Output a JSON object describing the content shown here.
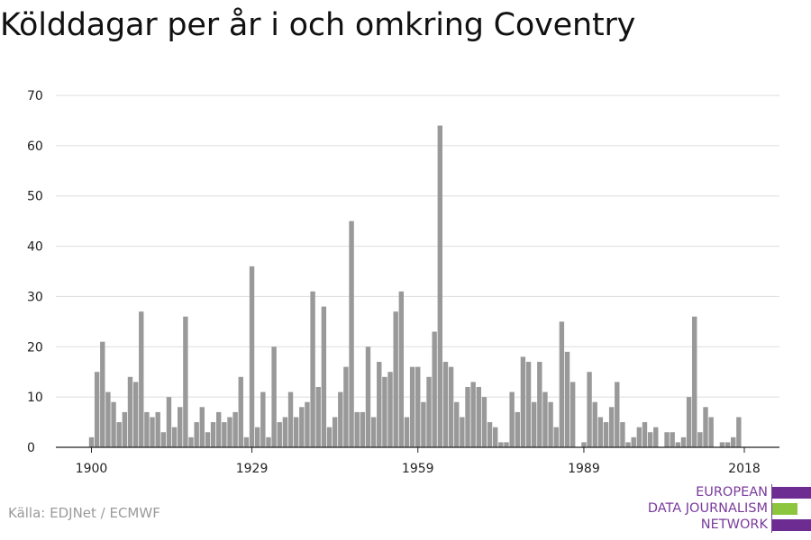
{
  "page": {
    "title": "Kölddagar per år i och omkring Coventry",
    "source": "Källa: EDJNet / ECMWF"
  },
  "logo": {
    "lines": [
      "EUROPEAN",
      "DATA JOURNALISM",
      "NETWORK"
    ],
    "colors": {
      "purple": "#6d2c91",
      "green": "#8cc63f",
      "text": "#7a3b9c"
    }
  },
  "chart_data": {
    "type": "bar",
    "title": "Kölddagar per år i och omkring Coventry",
    "xlabel": "",
    "ylabel": "",
    "ylim": [
      0,
      70
    ],
    "yticks": [
      0,
      10,
      20,
      30,
      40,
      50,
      60,
      70
    ],
    "xticks": [
      1900,
      1929,
      1959,
      1989,
      2018
    ],
    "grid": true,
    "bar_color": "#999999",
    "categories": [
      1900,
      1901,
      1902,
      1903,
      1904,
      1905,
      1906,
      1907,
      1908,
      1909,
      1910,
      1911,
      1912,
      1913,
      1914,
      1915,
      1916,
      1917,
      1918,
      1919,
      1920,
      1921,
      1922,
      1923,
      1924,
      1925,
      1926,
      1927,
      1928,
      1929,
      1930,
      1931,
      1932,
      1933,
      1934,
      1935,
      1936,
      1937,
      1938,
      1939,
      1940,
      1941,
      1942,
      1943,
      1944,
      1945,
      1946,
      1947,
      1948,
      1949,
      1950,
      1951,
      1952,
      1953,
      1954,
      1955,
      1956,
      1957,
      1958,
      1959,
      1960,
      1961,
      1962,
      1963,
      1964,
      1965,
      1966,
      1967,
      1968,
      1969,
      1970,
      1971,
      1972,
      1973,
      1974,
      1975,
      1976,
      1977,
      1978,
      1979,
      1980,
      1981,
      1982,
      1983,
      1984,
      1985,
      1986,
      1987,
      1988,
      1989,
      1990,
      1991,
      1992,
      1993,
      1994,
      1995,
      1996,
      1997,
      1998,
      1999,
      2000,
      2001,
      2002,
      2003,
      2004,
      2005,
      2006,
      2007,
      2008,
      2009,
      2010,
      2011,
      2012,
      2013,
      2014,
      2015,
      2016,
      2017,
      2018
    ],
    "values": [
      2,
      15,
      21,
      11,
      9,
      5,
      7,
      14,
      13,
      27,
      7,
      6,
      7,
      3,
      10,
      4,
      8,
      26,
      2,
      5,
      8,
      3,
      5,
      7,
      5,
      6,
      7,
      14,
      2,
      36,
      4,
      11,
      2,
      20,
      5,
      6,
      11,
      6,
      8,
      9,
      31,
      12,
      28,
      4,
      6,
      11,
      16,
      45,
      7,
      7,
      20,
      6,
      17,
      14,
      15,
      27,
      31,
      6,
      16,
      16,
      9,
      14,
      23,
      64,
      17,
      16,
      9,
      6,
      12,
      13,
      12,
      10,
      5,
      4,
      1,
      1,
      11,
      7,
      18,
      17,
      9,
      17,
      11,
      9,
      4,
      25,
      19,
      13,
      0,
      1,
      15,
      9,
      6,
      5,
      8,
      13,
      5,
      1,
      2,
      4,
      5,
      3,
      4,
      0,
      3,
      3,
      1,
      2,
      10,
      26,
      3,
      8,
      6,
      0,
      1,
      1,
      2,
      6,
      0
    ]
  }
}
